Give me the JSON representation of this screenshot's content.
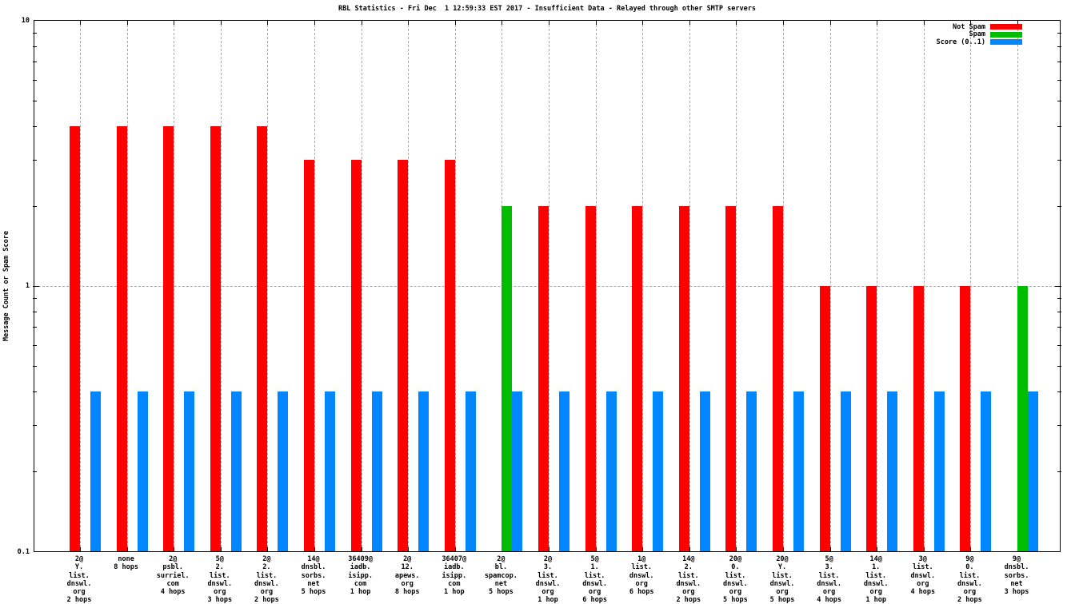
{
  "chart_data": {
    "type": "bar",
    "title": "RBL Statistics - Fri Dec  1 12:59:33 EST 2017 - Insufficient Data - Relayed through other SMTP servers",
    "ylabel": "Message Count or Spam Score",
    "xlabel": "",
    "yscale": "log",
    "ylim": [
      0.1,
      10
    ],
    "yticks": [
      "10",
      "1",
      "0.1"
    ],
    "grid": true,
    "legend_position": "top-right-inside",
    "legend": [
      "Not Spam",
      "Spam",
      "Score (0..1)"
    ],
    "colors": {
      "not_spam": "#ff0000",
      "spam": "#00bd00",
      "score": "#0087ff"
    },
    "categories": [
      [
        "2@",
        "Y.",
        "list.",
        "dnswl.",
        "org",
        "2 hops"
      ],
      [
        "none",
        "8 hops"
      ],
      [
        "2@",
        "psbl.",
        "surriel.",
        "com",
        "4 hops"
      ],
      [
        "5@",
        "2.",
        "list.",
        "dnswl.",
        "org",
        "3 hops"
      ],
      [
        "2@",
        "2.",
        "list.",
        "dnswl.",
        "org",
        "2 hops"
      ],
      [
        "14@",
        "dnsbl.",
        "sorbs.",
        "net",
        "5 hops"
      ],
      [
        "36409@",
        "iadb.",
        "isipp.",
        "com",
        "1 hop"
      ],
      [
        "2@",
        "12.",
        "apews.",
        "org",
        "8 hops"
      ],
      [
        "36407@",
        "iadb.",
        "isipp.",
        "com",
        "1 hop"
      ],
      [
        "2@",
        "bl.",
        "spamcop.",
        "net",
        "5 hops"
      ],
      [
        "2@",
        "3.",
        "list.",
        "dnswl.",
        "org",
        "1 hop"
      ],
      [
        "5@",
        "1.",
        "list.",
        "dnswl.",
        "org",
        "6 hops"
      ],
      [
        "1@",
        "list.",
        "dnswl.",
        "org",
        "6 hops"
      ],
      [
        "14@",
        "2.",
        "list.",
        "dnswl.",
        "org",
        "2 hops"
      ],
      [
        "20@",
        "0.",
        "list.",
        "dnswl.",
        "org",
        "5 hops"
      ],
      [
        "20@",
        "Y.",
        "list.",
        "dnswl.",
        "org",
        "5 hops"
      ],
      [
        "5@",
        "3.",
        "list.",
        "dnswl.",
        "org",
        "4 hops"
      ],
      [
        "14@",
        "1.",
        "list.",
        "dnswl.",
        "org",
        "1 hop"
      ],
      [
        "3@",
        "list.",
        "dnswl.",
        "org",
        "4 hops"
      ],
      [
        "9@",
        "0.",
        "list.",
        "dnswl.",
        "org",
        "2 hops"
      ],
      [
        "9@",
        "dnsbl.",
        "sorbs.",
        "net",
        "3 hops"
      ]
    ],
    "series": [
      {
        "name": "Not Spam",
        "key": "not_spam",
        "values": [
          4,
          4,
          4,
          4,
          4,
          3,
          3,
          3,
          3,
          null,
          2,
          2,
          2,
          2,
          2,
          2,
          1,
          1,
          1,
          1,
          null
        ]
      },
      {
        "name": "Spam",
        "key": "spam",
        "values": [
          null,
          null,
          null,
          null,
          null,
          null,
          null,
          null,
          null,
          2,
          null,
          null,
          null,
          null,
          null,
          null,
          null,
          null,
          null,
          null,
          1
        ]
      },
      {
        "name": "Score (0..1)",
        "key": "score",
        "values": [
          0.4,
          0.4,
          0.4,
          0.4,
          0.4,
          0.4,
          0.4,
          0.4,
          0.4,
          0.4,
          0.4,
          0.4,
          0.4,
          0.4,
          0.4,
          0.4,
          0.4,
          0.4,
          0.4,
          0.4,
          0.4
        ]
      }
    ]
  }
}
